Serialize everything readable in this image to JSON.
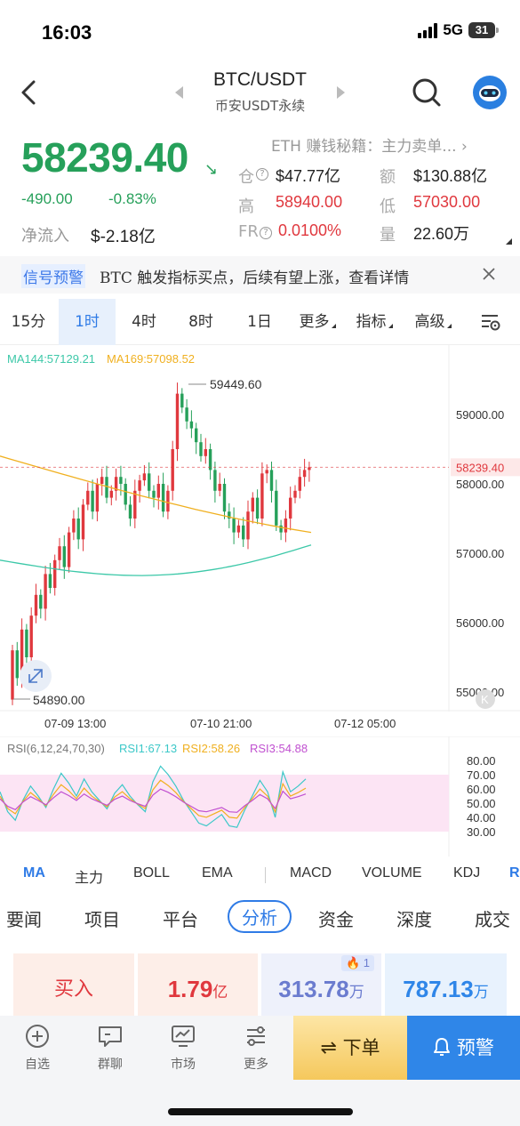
{
  "status": {
    "time": "16:03",
    "network": "5G",
    "battery": "31"
  },
  "header": {
    "pair": "BTC/USDT",
    "subtitle": "币安USDT永续"
  },
  "ticker": {
    "price": "58239.40",
    "change": "-490.00",
    "change_pct": "-0.83%",
    "net_inflow_label": "净流入",
    "net_inflow_value": "$-2.18亿",
    "promo": "ETH 赚钱秘籍：主力卖单...",
    "stats": {
      "oi_label": "仓",
      "oi_value": "$47.77亿",
      "amount_label": "额",
      "amount_value": "$130.88亿",
      "high_label": "高",
      "high_value": "58940.00",
      "low_label": "低",
      "low_value": "57030.00",
      "fr_label": "FR",
      "fr_value": "0.0100%",
      "vol_label": "量",
      "vol_value": "22.60万"
    }
  },
  "alert": {
    "tag": "信号预警",
    "text": "BTC 触发指标买点，后续有望上涨，查看详情"
  },
  "timeframes": [
    "15分",
    "1时",
    "4时",
    "8时",
    "1日"
  ],
  "timeframe_active": "1时",
  "menus": {
    "more": "更多",
    "indicators": "指标",
    "advanced": "高级"
  },
  "chart": {
    "ma144_label": "MA144:57129.21",
    "ma169_label": "MA169:57098.52",
    "high_marker": "59449.60",
    "low_marker": "54890.00",
    "last_price_label": "58239.40",
    "price_ticks": [
      "59000.00",
      "58000.00",
      "57000.00",
      "56000.00",
      "55000.00"
    ],
    "time_ticks": [
      "07-09 13:00",
      "07-10 21:00",
      "07-12 05:00"
    ],
    "colors": {
      "up": "#e0383e",
      "down": "#26a05a",
      "ma144": "#3cc8a8",
      "ma169": "#f0b020"
    }
  },
  "chart_data": {
    "type": "candlestick",
    "price_range": [
      54890,
      59449.6
    ],
    "high": 59449.6,
    "low": 54890,
    "last": 58239.4,
    "ma144": 57129.21,
    "ma169": 57098.52
  },
  "rsi": {
    "title": "RSI(6,12,24,70,30)",
    "rsi1": "RSI1:67.13",
    "rsi2": "RSI2:58.26",
    "rsi3": "RSI3:54.88",
    "ticks": [
      "80.00",
      "70.00",
      "60.00",
      "50.00",
      "40.00",
      "30.00"
    ],
    "colors": {
      "rsi1": "#3cc8c8",
      "rsi2": "#f0b020",
      "rsi3": "#c050d0"
    }
  },
  "indicator_tabs": [
    "MA",
    "主力",
    "BOLL",
    "EMA",
    "MACD",
    "VOLUME",
    "KDJ",
    "R"
  ],
  "section_tabs": [
    "要闻",
    "项目",
    "平台",
    "分析",
    "资金",
    "深度",
    "成交"
  ],
  "section_active": "分析",
  "cards": {
    "buy_label": "买入",
    "buy_value": "1.79",
    "buy_unit": "亿",
    "fire_count": "1",
    "v3": "313.78",
    "v3_unit": "万",
    "v4": "787.13",
    "v4_unit": "万"
  },
  "bottom_nav": {
    "watchlist": "自选",
    "group": "群聊",
    "market": "市场",
    "more": "更多",
    "order": "下单",
    "alert": "预警"
  }
}
